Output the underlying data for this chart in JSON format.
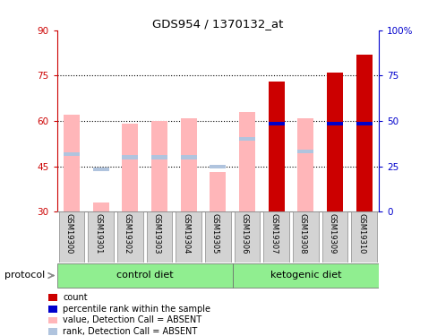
{
  "title": "GDS954 / 1370132_at",
  "samples": [
    "GSM19300",
    "GSM19301",
    "GSM19302",
    "GSM19303",
    "GSM19304",
    "GSM19305",
    "GSM19306",
    "GSM19307",
    "GSM19308",
    "GSM19309",
    "GSM19310"
  ],
  "value_absent": [
    62,
    33,
    59,
    60,
    61,
    43,
    63,
    null,
    61,
    null,
    null
  ],
  "rank_absent": [
    49,
    44,
    48,
    48,
    48,
    45,
    54,
    null,
    50,
    null,
    null
  ],
  "count_red": [
    null,
    null,
    null,
    null,
    null,
    null,
    null,
    73,
    null,
    76,
    82
  ],
  "percentile_blue": [
    null,
    null,
    null,
    null,
    null,
    null,
    null,
    59,
    null,
    59,
    59
  ],
  "ylim_left": [
    30,
    90
  ],
  "ylim_right": [
    0,
    100
  ],
  "yticks_left": [
    30,
    45,
    60,
    75,
    90
  ],
  "yticks_right": [
    0,
    25,
    50,
    75,
    100
  ],
  "grid_yticks": [
    45,
    60,
    75
  ],
  "bg_color": "#ffffff",
  "bar_color_absent_value": "#ffb6b9",
  "bar_color_absent_rank": "#b0c4de",
  "bar_color_count": "#cc0000",
  "bar_color_percentile": "#0000cc",
  "left_axis_color": "#cc0000",
  "right_axis_color": "#0000cc",
  "bar_width": 0.55,
  "label_area_color": "#d3d3d3",
  "group1_name": "control diet",
  "group2_name": "ketogenic diet",
  "group_color": "#90ee90",
  "protocol_label": "protocol",
  "legend_items": [
    [
      "#cc0000",
      "count"
    ],
    [
      "#0000cc",
      "percentile rank within the sample"
    ],
    [
      "#ffb6b9",
      "value, Detection Call = ABSENT"
    ],
    [
      "#b0c4de",
      "rank, Detection Call = ABSENT"
    ]
  ]
}
